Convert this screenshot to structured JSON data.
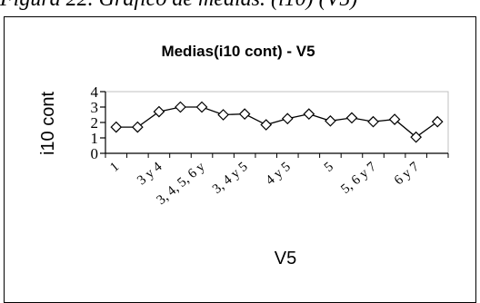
{
  "caption": "Figura 22. Gráfico de medias. (i10) (V5)",
  "chart_data": {
    "type": "line",
    "title": "Medias(i10 cont) - V5",
    "xlabel": "V5",
    "ylabel": "i10 cont",
    "ylim": [
      0,
      4
    ],
    "yticks": [
      0,
      1,
      2,
      3,
      4
    ],
    "categories": [
      "1",
      "",
      "3 y 4",
      "",
      "3, 4, 5, 6 y",
      "",
      "3, 4 y 5",
      "",
      "4 y 5",
      "",
      "5",
      "",
      "5, 6 y 7",
      "",
      "6 y 7",
      ""
    ],
    "series": [
      {
        "values": [
          1.7,
          1.7,
          2.7,
          3.0,
          3.0,
          2.5,
          2.55,
          1.85,
          2.25,
          2.55,
          2.1,
          2.3,
          2.05,
          2.2,
          1.05,
          2.05
        ]
      }
    ],
    "marker": "diamond",
    "line_color": "#000000",
    "grid": false,
    "legend": "none"
  }
}
